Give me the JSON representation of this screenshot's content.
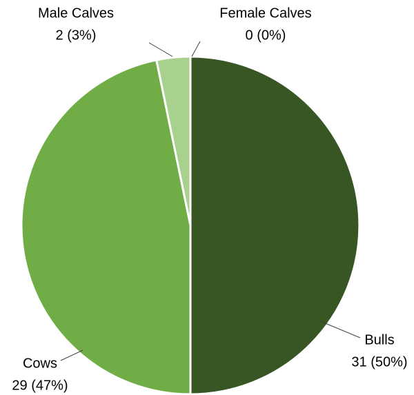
{
  "chart_data": {
    "type": "pie",
    "categories": [
      "Bulls",
      "Cows",
      "Male Calves",
      "Female Calves"
    ],
    "values": [
      31,
      29,
      2,
      0
    ],
    "value_labels": [
      "31 (50%)",
      "29 (47%)",
      "2 (3%)",
      "0 (0%)"
    ],
    "colors": [
      "#375623",
      "#70ad47",
      "#a9d18e",
      "#c5e0b4"
    ]
  }
}
